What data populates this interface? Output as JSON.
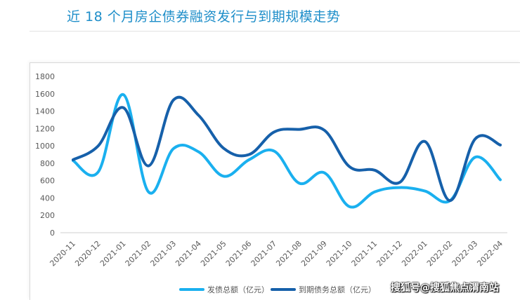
{
  "chart_data": {
    "type": "line",
    "title": "近 18 个月房企债券融资发行与到期规模走势",
    "categories": [
      "2020-11",
      "2020-12",
      "2021-01",
      "2021-02",
      "2021-03",
      "2021-04",
      "2021-05",
      "2021-06",
      "2021-07",
      "2021-08",
      "2021-09",
      "2021-10",
      "2021-11",
      "2021-12",
      "2022-01",
      "2022-02",
      "2022-03",
      "2022-04"
    ],
    "series": [
      {
        "name": "发债总额（亿元）",
        "color": "#1ab0ef",
        "values": [
          830,
          700,
          1590,
          470,
          970,
          930,
          650,
          840,
          940,
          570,
          690,
          300,
          470,
          520,
          480,
          370,
          870,
          610
        ]
      },
      {
        "name": "到期债务总额（亿元）",
        "color": "#1660aa",
        "values": [
          840,
          1000,
          1440,
          770,
          1530,
          1350,
          970,
          900,
          1160,
          1190,
          1180,
          760,
          720,
          580,
          1050,
          370,
          1080,
          1010
        ]
      }
    ],
    "ylim": [
      0,
      1800
    ],
    "yticks": [
      "0",
      "200",
      "400",
      "600",
      "800",
      "1000",
      "1200",
      "1400",
      "1600",
      "1800"
    ],
    "grid": false,
    "legend_position": "bottom-right"
  },
  "watermark": "搜狐号@搜狐焦点渭南站"
}
